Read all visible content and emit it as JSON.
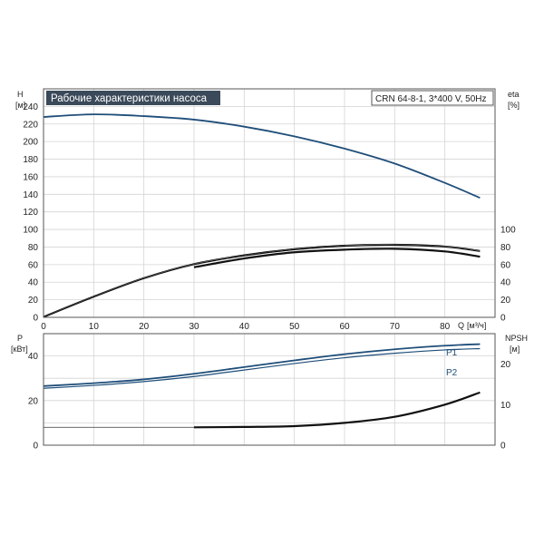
{
  "chart_data": [
    {
      "type": "line",
      "title": "Рабочие характеристики насоса",
      "subtitle": "CRN 64-8-1, 3*400 V, 50Hz",
      "xlabel": "Q [м³/ч]",
      "x_unit_symbol": "Q",
      "x_unit": "[м³/ч]",
      "ylabel": "H",
      "y_unit": "[м]",
      "y2label": "eta",
      "y2_unit": "[%]",
      "xlim": [
        0,
        90
      ],
      "ylim": [
        0,
        260
      ],
      "y2lim": [
        0,
        100
      ],
      "grid": true,
      "x_ticks": [
        0,
        10,
        20,
        30,
        40,
        50,
        60,
        70,
        80
      ],
      "y_ticks": [
        0,
        20,
        40,
        60,
        80,
        100,
        120,
        140,
        160,
        180,
        200,
        220,
        240
      ],
      "y2_ticks": [
        0,
        20,
        40,
        60,
        80,
        100
      ],
      "series": [
        {
          "axis": "left",
          "color": "#1f4e79",
          "x": [
            0,
            10,
            20,
            30,
            40,
            50,
            60,
            70,
            80,
            87
          ],
          "y": [
            228,
            231,
            229,
            225,
            217,
            206,
            192,
            175,
            153,
            136
          ]
        },
        {
          "axis": "right",
          "color": "#111111",
          "x": [
            0,
            10,
            20,
            30,
            40,
            50,
            60,
            70,
            80,
            87
          ],
          "y": [
            0,
            23,
            44,
            60,
            70,
            77,
            81,
            82,
            80,
            75
          ]
        },
        {
          "axis": "right",
          "color": "#111111",
          "x": [
            30,
            40,
            50,
            60,
            70,
            80,
            87
          ],
          "y": [
            57,
            67,
            74,
            77,
            78,
            75,
            69
          ]
        }
      ]
    },
    {
      "type": "line",
      "ylabel": "P",
      "y_unit": "[кВт]",
      "y2label": "NPSH",
      "y2_unit": "[м]",
      "xlim": [
        0,
        90
      ],
      "ylim": [
        0,
        50
      ],
      "y2lim": [
        0,
        27.5
      ],
      "grid": true,
      "y_ticks": [
        0,
        20,
        40
      ],
      "y2_ticks": [
        0,
        10,
        20
      ],
      "series": [
        {
          "name": "P1",
          "axis": "left",
          "color": "#1f4e79",
          "x": [
            0,
            10,
            20,
            30,
            40,
            50,
            60,
            70,
            80,
            87
          ],
          "y": [
            26.5,
            27.8,
            29.5,
            32.0,
            35.0,
            38.0,
            40.8,
            43.0,
            44.6,
            45.3
          ]
        },
        {
          "name": "P2",
          "axis": "left",
          "color": "#1f4e79",
          "x": [
            0,
            10,
            20,
            30,
            40,
            50,
            60,
            70,
            80,
            87
          ],
          "y": [
            25.5,
            26.8,
            28.5,
            30.8,
            33.7,
            36.6,
            39.2,
            41.2,
            42.7,
            43.3
          ]
        },
        {
          "axis": "right",
          "color": "#555555",
          "x": [
            0,
            30
          ],
          "y": [
            4.4,
            4.4
          ]
        },
        {
          "axis": "right",
          "color": "#111111",
          "x": [
            30,
            40,
            50,
            60,
            70,
            80,
            87
          ],
          "y": [
            4.4,
            4.5,
            4.7,
            5.5,
            7.0,
            10.0,
            13.0
          ]
        }
      ]
    }
  ]
}
